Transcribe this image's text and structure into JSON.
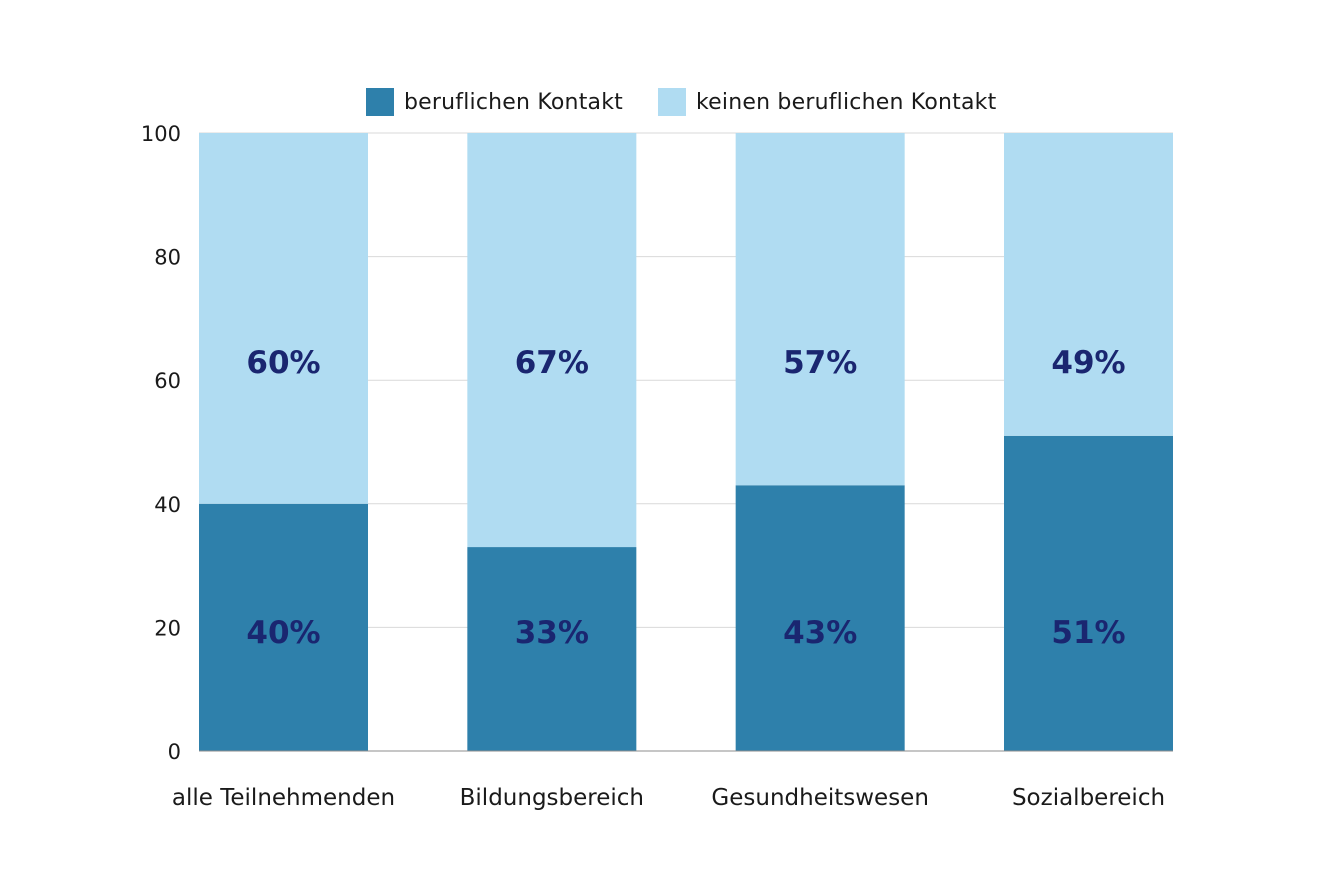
{
  "chart_data": {
    "type": "bar",
    "stacked": true,
    "categories": [
      "alle Teilnehmenden",
      "Bildungsbereich",
      "Gesundheitswesen",
      "Sozialbereich"
    ],
    "series": [
      {
        "name": "beruflichen Kontakt",
        "values": [
          40,
          33,
          43,
          51
        ],
        "labels": [
          "40%",
          "33%",
          "43%",
          "51%"
        ],
        "color": "#2e80ab"
      },
      {
        "name": "keinen beruflichen Kontakt",
        "values": [
          60,
          67,
          57,
          49
        ],
        "labels": [
          "60%",
          "67%",
          "57%",
          "49%"
        ],
        "color": "#b0dcf2"
      }
    ],
    "yticks": [
      0,
      20,
      40,
      60,
      80,
      100
    ],
    "ylim": [
      0,
      100
    ],
    "grid": true,
    "legend_position": "top-center",
    "label_color": "#1a2670",
    "grid_color": "#d9d9d9"
  }
}
